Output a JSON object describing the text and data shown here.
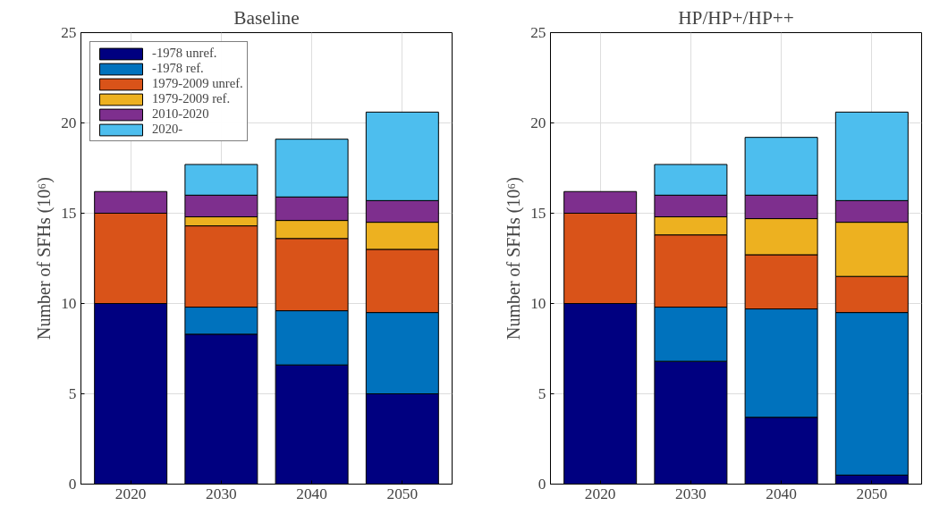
{
  "chart_data": [
    {
      "type": "bar",
      "stacked": true,
      "title": "Baseline",
      "ylabel": "Number of SFHs (10⁶)",
      "categories": [
        "2020",
        "2030",
        "2040",
        "2050"
      ],
      "ylim": [
        0,
        25
      ],
      "yticks": [
        0,
        5,
        10,
        15,
        20,
        25
      ],
      "grid": true,
      "legend": "top left",
      "series": [
        {
          "name": "-1978 unref.",
          "color": "#000080",
          "values": [
            10,
            8.3,
            6.6,
            5
          ]
        },
        {
          "name": "-1978 ref.",
          "color": "#0072bd",
          "values": [
            0,
            1.5,
            3,
            4.5
          ]
        },
        {
          "name": "1979-2009 unref.",
          "color": "#d95319",
          "values": [
            5,
            4.5,
            4,
            3.5
          ]
        },
        {
          "name": "1979-2009 ref.",
          "color": "#edb120",
          "values": [
            0,
            0.5,
            1,
            1.5
          ]
        },
        {
          "name": "2010-2020",
          "color": "#7e2f8e",
          "values": [
            1.2,
            1.2,
            1.3,
            1.2
          ]
        },
        {
          "name": "2020-",
          "color": "#4dbeee",
          "values": [
            0,
            1.7,
            3.2,
            4.9
          ]
        }
      ]
    },
    {
      "type": "bar",
      "stacked": true,
      "title": "HP/HP+/HP++",
      "ylabel": "Number of SFHs (10⁶)",
      "categories": [
        "2020",
        "2030",
        "2040",
        "2050"
      ],
      "ylim": [
        0,
        25
      ],
      "yticks": [
        0,
        5,
        10,
        15,
        20,
        25
      ],
      "grid": true,
      "series": [
        {
          "color": "#000080",
          "values": [
            10,
            6.8,
            3.7,
            0.5
          ]
        },
        {
          "color": "#0072bd",
          "values": [
            0,
            3,
            6,
            9
          ]
        },
        {
          "color": "#d95319",
          "values": [
            5,
            4,
            3,
            2
          ]
        },
        {
          "color": "#edb120",
          "values": [
            0,
            1,
            2,
            3
          ]
        },
        {
          "color": "#7e2f8e",
          "values": [
            1.2,
            1.2,
            1.3,
            1.2
          ]
        },
        {
          "color": "#4dbeee",
          "values": [
            0,
            1.7,
            3.2,
            4.9
          ]
        }
      ]
    }
  ]
}
